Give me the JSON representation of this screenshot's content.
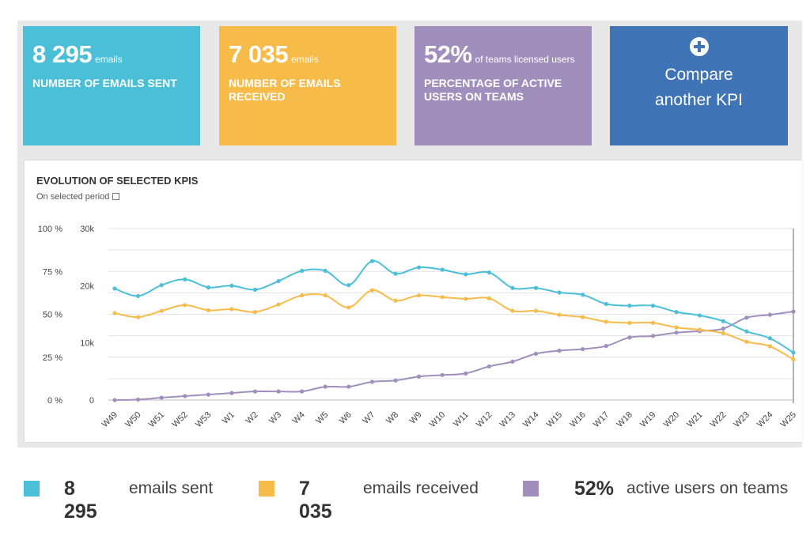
{
  "kpis": [
    {
      "value": "8 295",
      "unit": "emails",
      "caption": "NUMBER OF EMAILS SENT"
    },
    {
      "value": "7 035",
      "unit": "emails",
      "caption": "NUMBER OF EMAILS RECEIVED"
    },
    {
      "value": "52%",
      "unit": "of teams licensed users",
      "caption": "PERCENTAGE OF ACTIVE USERS ON TEAMS"
    }
  ],
  "compare": {
    "icon": "plus-circle-icon",
    "label_line1": "Compare",
    "label_line2": "another KPI"
  },
  "panel": {
    "title": "EVOLUTION OF SELECTED KPIS",
    "subtitle": "On selected period",
    "subtitle_icon": "calendar-icon"
  },
  "colors": {
    "sent": "#4bbfd8",
    "received": "#f7bb4a",
    "active": "#a08fbd",
    "compare": "#3f74b7"
  },
  "chart_data": {
    "type": "line",
    "categories": [
      "W49",
      "W50",
      "W51",
      "W52",
      "W53",
      "W1",
      "W2",
      "W3",
      "W4",
      "W5",
      "W6",
      "W7",
      "W8",
      "W9",
      "W10",
      "W11",
      "W12",
      "W13",
      "W14",
      "W15",
      "W16",
      "W17",
      "W18",
      "W19",
      "W20",
      "W21",
      "W22",
      "W23",
      "W24",
      "W25"
    ],
    "left_axis": {
      "ticks": [
        "100 %",
        "75 %",
        "50 %",
        "25 %",
        "0 %"
      ],
      "range": [
        0,
        100
      ]
    },
    "right_axis": {
      "ticks": [
        "30k",
        "20k",
        "10k",
        "0"
      ],
      "range": [
        0,
        30000
      ]
    },
    "grid": true,
    "series": [
      {
        "name": "emails sent",
        "axis": "right",
        "color": "#4bbfd8",
        "values": [
          19500,
          18200,
          20100,
          21100,
          19700,
          20000,
          19300,
          20800,
          22600,
          22600,
          20100,
          24300,
          22100,
          23200,
          22800,
          22000,
          22300,
          19600,
          19600,
          18800,
          18400,
          16800,
          16500,
          16500,
          15400,
          14800,
          13800,
          12000,
          10800,
          8300
        ]
      },
      {
        "name": "emails received",
        "axis": "right",
        "color": "#f7bb4a",
        "values": [
          15200,
          14500,
          15600,
          16600,
          15700,
          15900,
          15400,
          16700,
          18300,
          18300,
          16200,
          19200,
          17400,
          18300,
          18000,
          17700,
          17800,
          15600,
          15600,
          14900,
          14500,
          13700,
          13500,
          13500,
          12700,
          12300,
          11700,
          10200,
          9400,
          7100
        ]
      },
      {
        "name": "active users on teams",
        "axis": "left",
        "color": "#a08fbd",
        "values": [
          0,
          0.3,
          1.4,
          2.3,
          3.2,
          4.1,
          5.0,
          5.0,
          5.0,
          7.8,
          7.8,
          10.6,
          11.4,
          13.7,
          14.6,
          15.5,
          19.6,
          22.4,
          27.0,
          28.8,
          29.7,
          31.5,
          36.5,
          37.4,
          39.3,
          40.2,
          41.6,
          48.0,
          49.7,
          51.6
        ]
      }
    ]
  },
  "legend": [
    {
      "value": "8 295",
      "label": "emails sent",
      "color": "#4bbfd8"
    },
    {
      "value": "7 035",
      "label": "emails received",
      "color": "#f7bb4a"
    },
    {
      "value": "52%",
      "label": "active users on teams",
      "color": "#a08fbd"
    }
  ]
}
